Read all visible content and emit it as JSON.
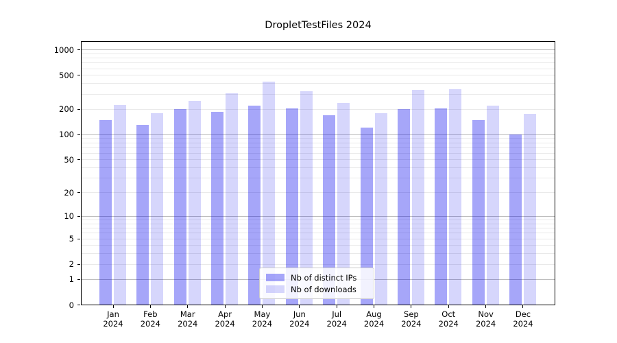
{
  "figure": {
    "background": "#ffffff"
  },
  "chart_data": {
    "type": "bar",
    "title": "DropletTestFiles 2024",
    "categories": [
      "Jan 2024",
      "Feb 2024",
      "Mar 2024",
      "Apr 2024",
      "May 2024",
      "Jun 2024",
      "Jul 2024",
      "Aug 2024",
      "Sep 2024",
      "Oct 2024",
      "Nov 2024",
      "Dec 2024"
    ],
    "x": {
      "months": [
        "Jan",
        "Feb",
        "Mar",
        "Apr",
        "May",
        "Jun",
        "Jul",
        "Aug",
        "Sep",
        "Oct",
        "Nov",
        "Dec"
      ],
      "year": "2024"
    },
    "series": [
      {
        "name": "Nb of distinct IPs",
        "color": "#a6a6f8",
        "fill": "rgba(0,0,238,0.35)",
        "values": [
          150,
          130,
          200,
          185,
          220,
          205,
          170,
          120,
          200,
          205,
          148,
          100
        ]
      },
      {
        "name": "Nb of downloads",
        "color": "#d8d8fb",
        "fill": "rgba(0,0,238,0.16)",
        "values": [
          225,
          180,
          250,
          310,
          425,
          325,
          235,
          180,
          335,
          345,
          220,
          175
        ]
      }
    ],
    "yscale": "log1p",
    "y_ticks": [
      0,
      1,
      2,
      5,
      10,
      20,
      50,
      100,
      200,
      500,
      1000
    ],
    "ylim": [
      0,
      1270
    ],
    "xlabel": "",
    "ylabel": "",
    "grid": "both",
    "legend_position": "lower center"
  }
}
